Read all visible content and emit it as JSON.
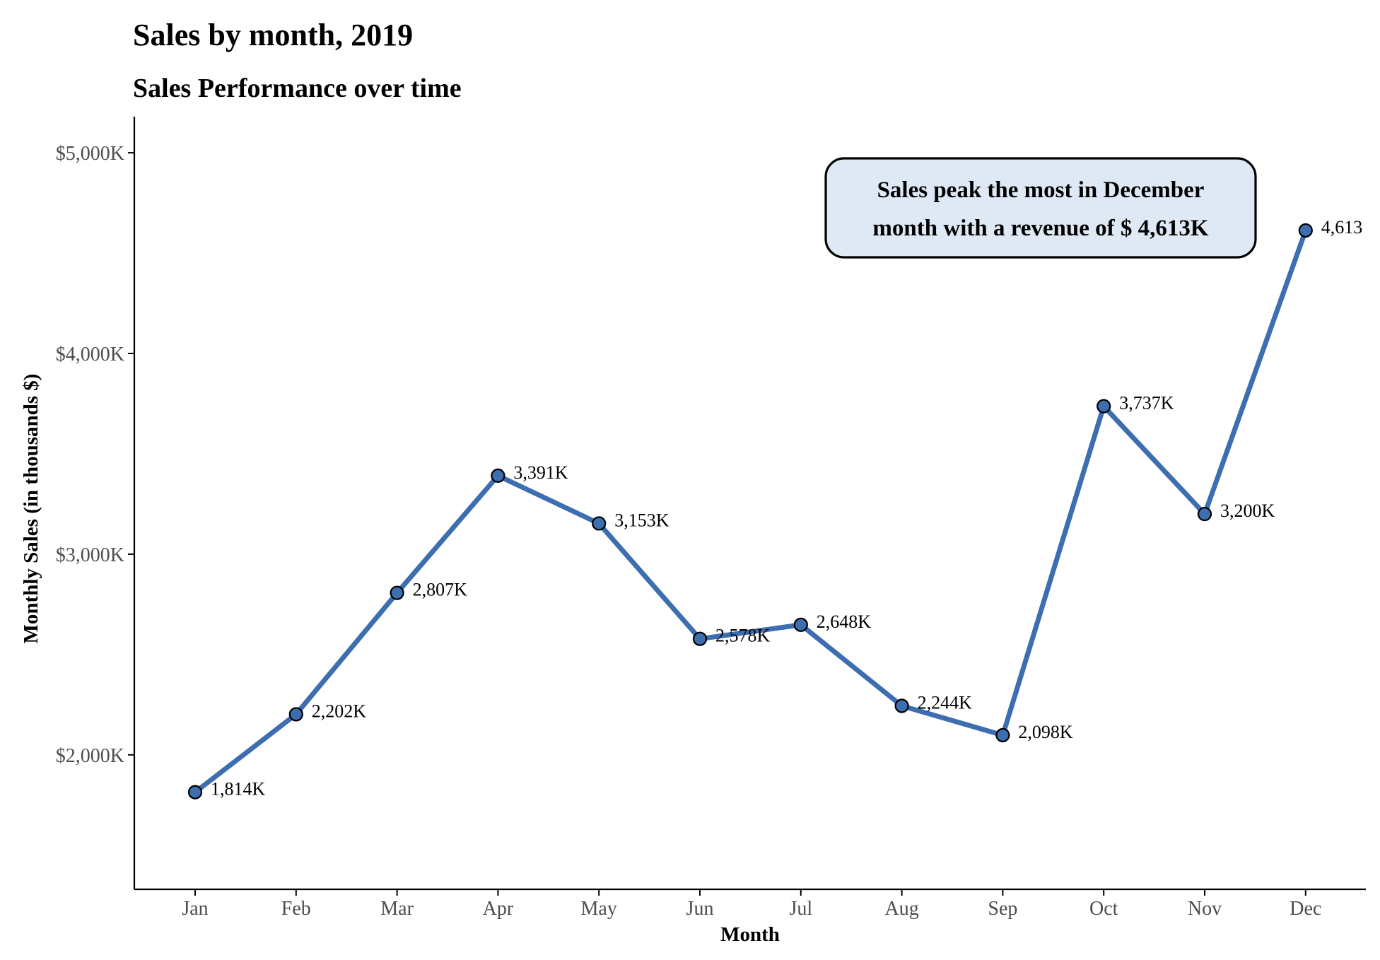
{
  "title": "Sales by month, 2019",
  "subtitle": "Sales Performance over time",
  "colors": {
    "line": "#3C6EB0",
    "point_fill": "#3C6EB0",
    "point_stroke": "#000000",
    "annotation_fill": "#DFE9F5",
    "axis": "#000000",
    "tick_label": "#4D4D4D"
  },
  "annotation": {
    "line1": "Sales peak the most in December",
    "line2": "month with a revenue of $ 4,613K"
  },
  "chart_data": {
    "type": "line",
    "title": "Sales by month, 2019",
    "subtitle": "Sales Performance over time",
    "xlabel": "Month",
    "ylabel": "Monthly Sales (in thousands $)",
    "categories": [
      "Jan",
      "Feb",
      "Mar",
      "Apr",
      "May",
      "Jun",
      "Jul",
      "Aug",
      "Sep",
      "Oct",
      "Nov",
      "Dec"
    ],
    "values": [
      1814,
      2202,
      2807,
      3391,
      3153,
      2578,
      2648,
      2244,
      2098,
      3737,
      3200,
      4613
    ],
    "data_labels": [
      "1,814K",
      "2,202K",
      "2,807K",
      "3,391K",
      "3,153K",
      "2,578K",
      "2,648K",
      "2,244K",
      "2,098K",
      "3,737K",
      "3,200K",
      "4,613"
    ],
    "ylim": [
      1330,
      5180
    ],
    "yticks": [
      2000,
      3000,
      4000,
      5000
    ],
    "ytick_labels": [
      "$2,000K",
      "$3,000K",
      "$4,000K",
      "$5,000K"
    ],
    "grid": false,
    "legend": "none"
  }
}
